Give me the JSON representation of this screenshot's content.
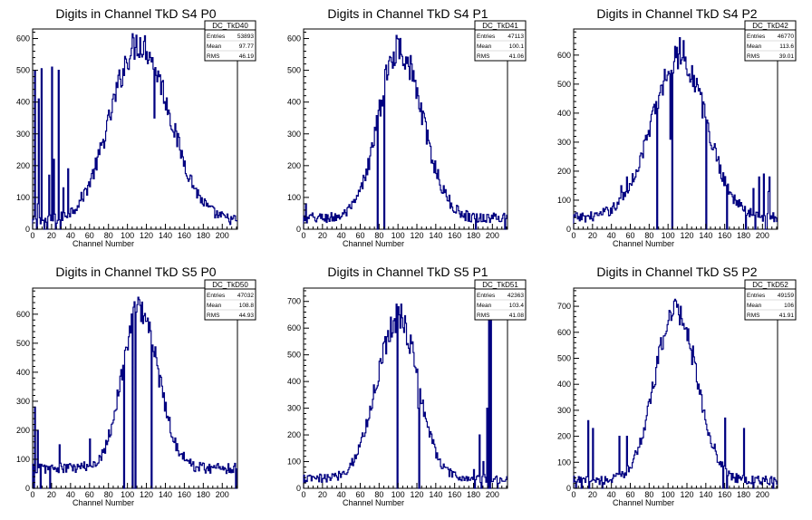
{
  "colors": {
    "line": "#000080",
    "frame": "#000000",
    "background": "#ffffff"
  },
  "stat_labels": {
    "entries": "Entries",
    "mean": "Mean",
    "rms": "RMS"
  },
  "chart_data": [
    {
      "type": "histogram",
      "title": "Digits in Channel TkD S4 P0",
      "xlabel": "Channel Number",
      "ylabel": "",
      "xlim": [
        0,
        216
      ],
      "ylim": [
        0,
        630
      ],
      "yticks": [
        0,
        100,
        200,
        300,
        400,
        500,
        600
      ],
      "xticks": [
        0,
        20,
        40,
        60,
        80,
        100,
        120,
        140,
        160,
        180,
        200
      ],
      "stats": {
        "name": "DC_TkD40",
        "entries": "53893",
        "mean": "97.77",
        "rms": "46.19"
      },
      "peak": 112,
      "peak_height": 585,
      "sigma_left": 30,
      "sigma_right": 32,
      "baseline": 25,
      "noise": 15,
      "spikes": [
        [
          2,
          500
        ],
        [
          4,
          90
        ],
        [
          5,
          80
        ],
        [
          6,
          410
        ],
        [
          9,
          505
        ],
        [
          12,
          30
        ],
        [
          15,
          25
        ],
        [
          17,
          170
        ],
        [
          20,
          510
        ],
        [
          22,
          220
        ],
        [
          24,
          120
        ],
        [
          27,
          500
        ],
        [
          32,
          130
        ],
        [
          37,
          190
        ],
        [
          128,
          350
        ]
      ],
      "dips": [
        [
          4,
          0
        ],
        [
          12,
          0
        ],
        [
          15,
          0
        ],
        [
          24,
          0
        ],
        [
          29,
          0
        ]
      ]
    },
    {
      "type": "histogram",
      "title": "Digits in Channel TkD S4 P1",
      "xlabel": "Channel Number",
      "ylabel": "",
      "xlim": [
        0,
        216
      ],
      "ylim": [
        0,
        630
      ],
      "yticks": [
        0,
        100,
        200,
        300,
        400,
        500,
        600
      ],
      "xticks": [
        0,
        20,
        40,
        60,
        80,
        100,
        120,
        140,
        160,
        180,
        200
      ],
      "stats": {
        "name": "DC_TkD41",
        "entries": "47113",
        "mean": "100.1",
        "rms": "41.06"
      },
      "peak": 100,
      "peak_height": 570,
      "sigma_left": 21,
      "sigma_right": 25,
      "baseline": 35,
      "noise": 15,
      "spikes": [
        [
          2,
          80
        ],
        [
          3,
          20
        ],
        [
          78,
          420
        ],
        [
          88,
          470
        ],
        [
          99,
          600
        ],
        [
          102,
          600
        ],
        [
          212,
          50
        ]
      ],
      "dips": [
        [
          78,
          0
        ],
        [
          85,
          0
        ],
        [
          182,
          0
        ],
        [
          213,
          0
        ]
      ]
    },
    {
      "type": "histogram",
      "title": "Digits in Channel TkD S4 P2",
      "xlabel": "Channel Number",
      "ylabel": "",
      "xlim": [
        0,
        216
      ],
      "ylim": [
        0,
        690
      ],
      "yticks": [
        0,
        100,
        200,
        300,
        400,
        500,
        600
      ],
      "xticks": [
        0,
        20,
        40,
        60,
        80,
        100,
        120,
        140,
        160,
        180,
        200
      ],
      "stats": {
        "name": "DC_TkD42",
        "entries": "46770",
        "mean": "113.6",
        "rms": "39.01"
      },
      "peak": 112,
      "peak_height": 590,
      "sigma_left": 30,
      "sigma_right": 28,
      "baseline": 40,
      "noise": 15,
      "spikes": [
        [
          50,
          150
        ],
        [
          56,
          180
        ],
        [
          65,
          180
        ],
        [
          72,
          260
        ],
        [
          80,
          320
        ],
        [
          102,
          310
        ],
        [
          112,
          660
        ],
        [
          116,
          650
        ],
        [
          190,
          140
        ],
        [
          196,
          180
        ],
        [
          201,
          190
        ],
        [
          206,
          130
        ],
        [
          207,
          180
        ]
      ],
      "dips": [
        [
          88,
          0
        ],
        [
          104,
          0
        ],
        [
          140,
          0
        ],
        [
          162,
          0
        ],
        [
          182,
          0
        ],
        [
          192,
          0
        ],
        [
          203,
          0
        ],
        [
          204,
          0
        ]
      ]
    },
    {
      "type": "histogram",
      "title": "Digits in Channel TkD S5 P0",
      "xlabel": "Channel Number",
      "ylabel": "",
      "xlim": [
        0,
        216
      ],
      "ylim": [
        0,
        690
      ],
      "yticks": [
        0,
        100,
        200,
        300,
        400,
        500,
        600
      ],
      "xticks": [
        0,
        20,
        40,
        60,
        80,
        100,
        120,
        140,
        160,
        180,
        200
      ],
      "stats": {
        "name": "DC_TkD50",
        "entries": "47032",
        "mean": "108.8",
        "rms": "44.93"
      },
      "peak": 112,
      "peak_height": 620,
      "sigma_left": 18,
      "sigma_right": 20,
      "baseline": 70,
      "noise": 15,
      "spikes": [
        [
          2,
          280
        ],
        [
          5,
          200
        ],
        [
          28,
          150
        ],
        [
          60,
          170
        ],
        [
          96,
          100
        ],
        [
          105,
          470
        ],
        [
          108,
          590
        ],
        [
          112,
          650
        ],
        [
          125,
          600
        ]
      ],
      "dips": [
        [
          1,
          0
        ],
        [
          8,
          0
        ],
        [
          18,
          0
        ],
        [
          96,
          0
        ],
        [
          105,
          0
        ],
        [
          108,
          0
        ],
        [
          125,
          0
        ],
        [
          214,
          0
        ]
      ]
    },
    {
      "type": "histogram",
      "title": "Digits in Channel TkD S5 P1",
      "xlabel": "Channel Number",
      "ylabel": "",
      "xlim": [
        0,
        216
      ],
      "ylim": [
        0,
        750
      ],
      "yticks": [
        0,
        100,
        200,
        300,
        400,
        500,
        600,
        700
      ],
      "xticks": [
        0,
        20,
        40,
        60,
        80,
        100,
        120,
        140,
        160,
        180,
        200
      ],
      "stats": {
        "name": "DC_TkD51",
        "entries": "42363",
        "mean": "103.4",
        "rms": "41.08"
      },
      "peak": 100,
      "peak_height": 640,
      "sigma_left": 23,
      "sigma_right": 21,
      "baseline": 35,
      "noise": 15,
      "spikes": [
        [
          98,
          690
        ],
        [
          100,
          680
        ],
        [
          103,
          690
        ],
        [
          121,
          300
        ],
        [
          180,
          70
        ],
        [
          186,
          200
        ],
        [
          190,
          100
        ],
        [
          194,
          300
        ],
        [
          196,
          650
        ],
        [
          198,
          720
        ]
      ],
      "dips": [
        [
          99,
          0
        ],
        [
          122,
          0
        ],
        [
          181,
          0
        ],
        [
          188,
          0
        ],
        [
          195,
          0
        ],
        [
          197,
          0
        ],
        [
          205,
          0
        ]
      ]
    },
    {
      "type": "histogram",
      "title": "Digits in Channel TkD S5 P2",
      "xlabel": "Channel Number",
      "ylabel": "",
      "xlim": [
        0,
        216
      ],
      "ylim": [
        0,
        770
      ],
      "yticks": [
        0,
        100,
        200,
        300,
        400,
        500,
        600,
        700
      ],
      "xticks": [
        0,
        20,
        40,
        60,
        80,
        100,
        120,
        140,
        160,
        180,
        200
      ],
      "stats": {
        "name": "DC_TkD52",
        "entries": "49159",
        "mean": "106",
        "rms": "41.91"
      },
      "peak": 108,
      "peak_height": 690,
      "sigma_left": 22,
      "sigma_right": 22,
      "baseline": 30,
      "noise": 15,
      "spikes": [
        [
          15,
          260
        ],
        [
          20,
          230
        ],
        [
          30,
          240
        ],
        [
          48,
          200
        ],
        [
          56,
          200
        ],
        [
          106,
          720
        ],
        [
          113,
          700
        ],
        [
          160,
          270
        ],
        [
          180,
          230
        ]
      ],
      "dips": [
        [
          2,
          0
        ],
        [
          8,
          0
        ],
        [
          16,
          0
        ],
        [
          30,
          0
        ],
        [
          158,
          0
        ],
        [
          162,
          0
        ],
        [
          190,
          0
        ],
        [
          211,
          0
        ]
      ]
    }
  ]
}
